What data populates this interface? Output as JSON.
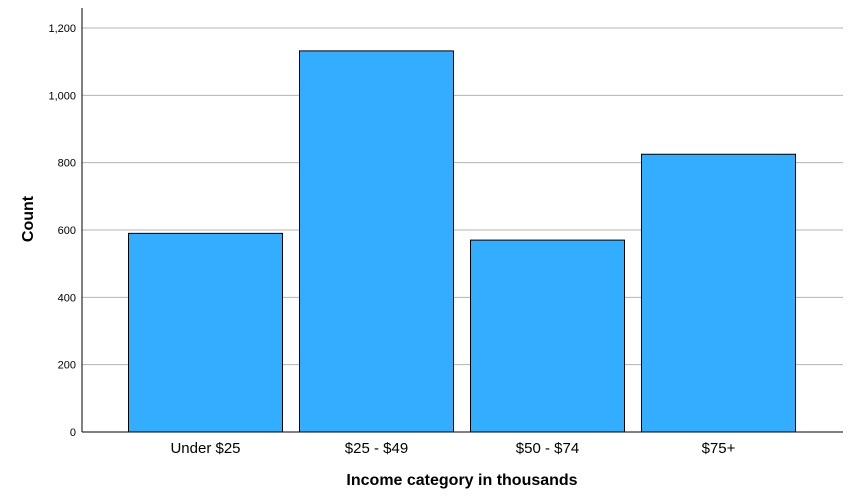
{
  "chart_data": {
    "type": "bar",
    "title": "",
    "xlabel": "Income category in thousands",
    "ylabel": "Count",
    "categories": [
      "Under $25",
      "$25 - $49",
      "$50 - $74",
      "$75+"
    ],
    "values": [
      590,
      1132,
      570,
      825
    ],
    "ylim": [
      0,
      1200
    ],
    "yticks": [
      0,
      200,
      400,
      600,
      800,
      1000,
      1200
    ],
    "ytick_labels": [
      "0",
      "200",
      "400",
      "600",
      "800",
      "1,000",
      "1,200"
    ],
    "grid": true,
    "legend": "none",
    "colors": {
      "bar": "#33adff",
      "bar_outline": "#000000",
      "grid": "#b3b3b3"
    }
  }
}
